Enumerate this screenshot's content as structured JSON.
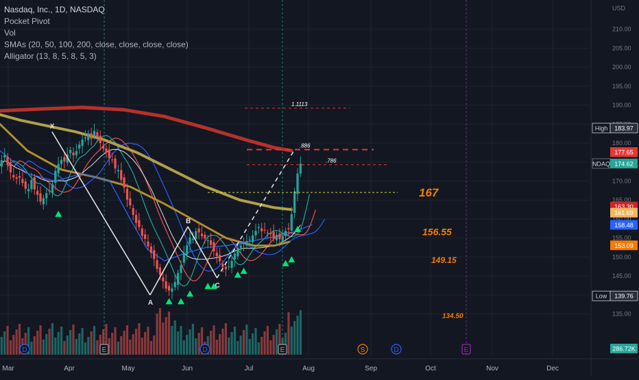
{
  "legend": {
    "title": "Nasdaq, Inc., 1D, NASDAQ",
    "lines": [
      "Pocket Pivot",
      "Vol",
      "SMAs (20, 50, 100, 200, close, close, close, close)",
      "Alligator (13, 8, 5, 8, 5, 3)"
    ]
  },
  "colors": {
    "background": "#131722",
    "up": "#26a69a",
    "down": "#ef5350",
    "sma20": "#2962ff",
    "sma50": "#b28d2c",
    "sma100": "#b0a04a",
    "sma200": "#b7312b",
    "alligator_jaw": "#2962ff",
    "alligator_teeth": "#ef5350",
    "alligator_lips": "#26a69a",
    "pivot_marker": "#00e676",
    "fib_red": "#e53935",
    "fib_yellow": "#cddc39",
    "target_orange": "#f57c00"
  },
  "chart_data": {
    "type": "candlestick",
    "y_axis_unit": "USD",
    "ylim": [
      131.5,
      213
    ],
    "y_ticks": [
      135,
      140,
      145,
      150,
      155,
      160,
      165,
      170,
      175,
      180,
      185,
      190,
      195,
      200,
      205,
      210
    ],
    "x_tick_labels": [
      "Mar",
      "Apr",
      "May",
      "Jun",
      "Jul",
      "Aug",
      "Sep",
      "Oct",
      "Nov",
      "Dec"
    ],
    "price_badges": [
      {
        "label": "High",
        "value": "183.97",
        "price": 183.97,
        "color": "#2a2e39",
        "border": "#d1d4dc"
      },
      {
        "label": "",
        "value": "177.65",
        "price": 177.65,
        "color": "#e53935"
      },
      {
        "label": "NDAQ",
        "value": "174.62",
        "price": 174.62,
        "color": "#26a69a"
      },
      {
        "label": "",
        "value": "163.30",
        "price": 163.3,
        "color": "#c62828"
      },
      {
        "label": "",
        "value": "161.69",
        "price": 161.69,
        "color": "#f0b860"
      },
      {
        "label": "",
        "value": "158.48",
        "price": 158.48,
        "color": "#2962ff"
      },
      {
        "label": "",
        "value": "153.09",
        "price": 153.09,
        "color": "#f57c00"
      },
      {
        "label": "Low",
        "value": "139.76",
        "price": 139.76,
        "color": "#2a2e39",
        "border": "#d1d4dc"
      }
    ],
    "volume_badge": "286.72K",
    "fib_levels": [
      {
        "label": "1.1113",
        "price": 189.2
      },
      {
        "label": ".886",
        "price": 178.3
      },
      {
        "label": ".786",
        "price": 174.3
      }
    ],
    "targets": [
      {
        "label": "167",
        "price": 167
      },
      {
        "label": "156.55",
        "price": 156.55
      },
      {
        "label": "149.15",
        "price": 149.15
      },
      {
        "label": "134.50",
        "price": 134.5
      }
    ],
    "wave_labels": [
      "X",
      "A",
      "B",
      "C"
    ],
    "wave_points": [
      {
        "label": "X",
        "date": "Mar-23",
        "price": 183
      },
      {
        "label": "A",
        "date": "May-12",
        "price": 140
      },
      {
        "label": "B",
        "date": "May-31",
        "price": 158
      },
      {
        "label": "C",
        "date": "Jun-16",
        "price": 144.5
      },
      {
        "label": "",
        "date": "Jul-24",
        "price": 178.3
      }
    ],
    "event_markers": [
      "D",
      "E",
      "D",
      "E",
      "S",
      "D",
      "E"
    ],
    "closes": [
      173.8,
      175.5,
      176.8,
      174.2,
      172.3,
      171.0,
      170.6,
      170.9,
      169.5,
      168.0,
      167.9,
      170.3,
      167.8,
      166.4,
      164.6,
      165.5,
      166.8,
      167.3,
      169.2,
      172.7,
      174.5,
      175.6,
      175.2,
      177.0,
      178.2,
      176.8,
      177.9,
      179.6,
      180.9,
      181.5,
      182.6,
      181.2,
      183.2,
      181.6,
      180.0,
      178.6,
      177.6,
      176.0,
      175.6,
      173.3,
      172.9,
      170.3,
      168.3,
      165.1,
      163.6,
      161.1,
      159.0,
      157.9,
      155.6,
      154.8,
      152.8,
      151.1,
      149.5,
      146.9,
      145.3,
      143.6,
      141.7,
      141.2,
      141.7,
      143.4,
      145.8,
      147.8,
      151.0,
      153.1,
      155.2,
      154.8,
      156.8,
      156.5,
      155.5,
      154.9,
      154.4,
      153.2,
      151.5,
      150.2,
      148.9,
      147.4,
      146.8,
      147.5,
      149.0,
      150.9,
      152.4,
      153.0,
      153.4,
      154.2,
      154.6,
      155.7,
      156.9,
      157.9,
      156.8,
      157.1,
      156.3,
      156.0,
      154.8,
      155.8,
      154.7,
      155.5,
      156.9,
      157.3,
      161.3,
      167.3,
      172.0,
      174.6
    ]
  }
}
